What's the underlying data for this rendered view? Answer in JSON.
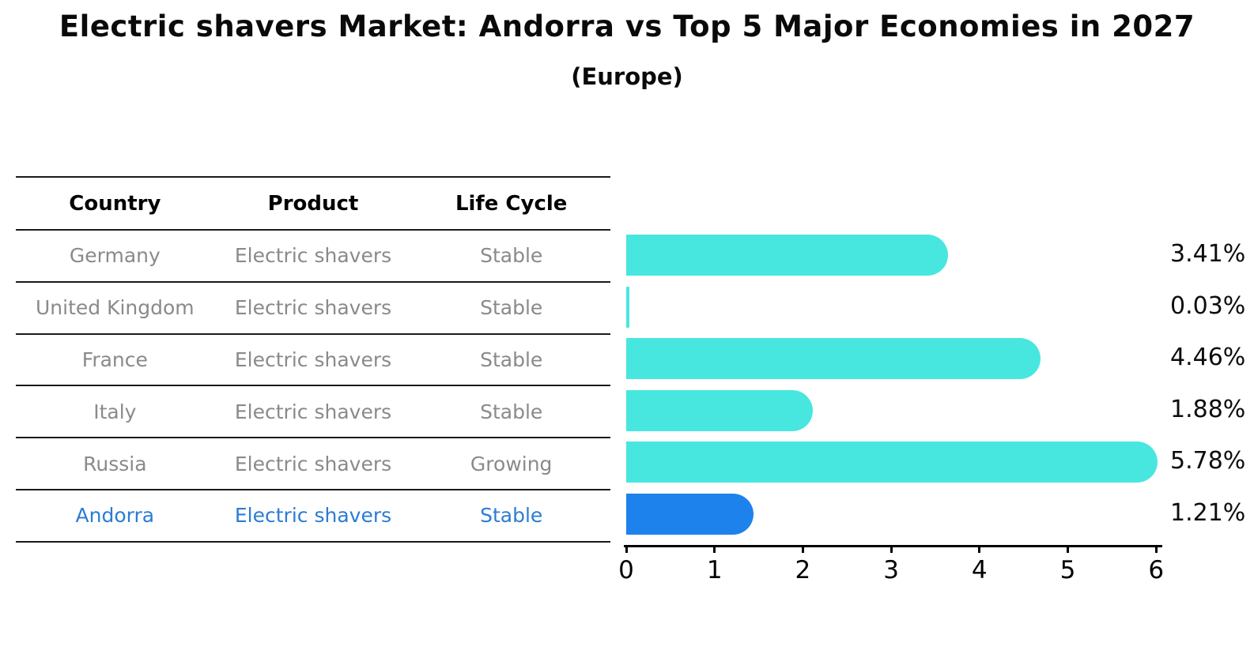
{
  "title": "Electric shavers Market: Andorra vs Top 5 Major Economies in 2027",
  "subtitle": "(Europe)",
  "table": {
    "columns": [
      "Country",
      "Product",
      "Life Cycle"
    ],
    "rows": [
      {
        "country": "Germany",
        "product": "Electric shavers",
        "life_cycle": "Stable",
        "highlighted": false
      },
      {
        "country": "United Kingdom",
        "product": "Electric shavers",
        "life_cycle": "Stable",
        "highlighted": false
      },
      {
        "country": "France",
        "product": "Electric shavers",
        "life_cycle": "Stable",
        "highlighted": false
      },
      {
        "country": "Italy",
        "product": "Electric shavers",
        "life_cycle": "Stable",
        "highlighted": false
      },
      {
        "country": "Russia",
        "product": "Electric shavers",
        "life_cycle": "Growing",
        "highlighted": false
      },
      {
        "country": "Andorra",
        "product": "Electric shavers",
        "life_cycle": "Stable",
        "highlighted": true
      }
    ]
  },
  "chart_data": {
    "type": "bar",
    "orientation": "horizontal",
    "title": "Electric shavers Market: Andorra vs Top 5 Major Economies in 2027",
    "subtitle": "(Europe)",
    "categories": [
      "Germany",
      "United Kingdom",
      "France",
      "Italy",
      "Russia",
      "Andorra"
    ],
    "values": [
      3.41,
      0.03,
      4.46,
      1.88,
      5.78,
      1.21
    ],
    "value_labels": [
      "3.41%",
      "0.03%",
      "4.46%",
      "1.88%",
      "5.78%",
      "1.21%"
    ],
    "x_ticks": [
      0,
      1,
      2,
      3,
      4,
      5,
      6
    ],
    "xlim": [
      0,
      6
    ],
    "xlabel": "",
    "ylabel": "",
    "grid": false,
    "legend": "none",
    "bar_color": "#47e7e0",
    "highlight_color": "#1e82ed",
    "highlight_index": 5,
    "highlight_style": "dotted-border"
  },
  "colors": {
    "highlight_text": "#2b7cd3",
    "row_text": "#8a8a8a",
    "header_text": "#000000",
    "line": "#1a1a1a",
    "axis": "#000000"
  }
}
